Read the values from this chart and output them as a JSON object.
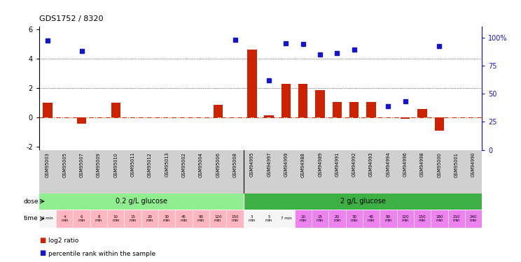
{
  "title": "GDS1752 / 8320",
  "samples": [
    "GSM95003",
    "GSM95005",
    "GSM95007",
    "GSM95009",
    "GSM95010",
    "GSM95011",
    "GSM95012",
    "GSM95013",
    "GSM95002",
    "GSM95004",
    "GSM95006",
    "GSM95008",
    "GSM94995",
    "GSM94997",
    "GSM94999",
    "GSM94988",
    "GSM94989",
    "GSM94991",
    "GSM94992",
    "GSM94993",
    "GSM94994",
    "GSM94996",
    "GSM94998",
    "GSM95000",
    "GSM95001",
    "GSM94990"
  ],
  "log2_ratio": [
    1.0,
    0.0,
    -0.4,
    0.0,
    1.0,
    0.0,
    0.0,
    0.0,
    0.0,
    0.0,
    0.85,
    0.0,
    4.6,
    0.15,
    2.3,
    2.3,
    1.85,
    1.05,
    1.05,
    1.05,
    0.0,
    -0.1,
    0.6,
    -0.9,
    0.0,
    0.0
  ],
  "percentile_raw": [
    97,
    null,
    88,
    null,
    null,
    null,
    null,
    null,
    null,
    null,
    null,
    98,
    null,
    62,
    95,
    94,
    85,
    86,
    89,
    null,
    39,
    43,
    null,
    92,
    null,
    null
  ],
  "dose_labels": [
    "0.2 g/L glucose",
    "2 g/L glucose"
  ],
  "dose_split": 12,
  "dose_color_low": "#90ee90",
  "dose_color_high": "#3cb043",
  "time_labels": [
    "2 min",
    "4\nmin",
    "6\nmin",
    "8\nmin",
    "10\nmin",
    "15\nmin",
    "20\nmin",
    "30\nmin",
    "45\nmin",
    "90\nmin",
    "120\nmin",
    "150\nmin",
    "3\nmin",
    "5\nmin",
    "7 min",
    "10\nmin",
    "15\nmin",
    "20\nmin",
    "30\nmin",
    "45\nmin",
    "90\nmin",
    "120\nmin",
    "150\nmin",
    "180\nmin",
    "210\nmin",
    "240\nmin"
  ],
  "time_colors": [
    "#f5f5f5",
    "#ffb6c1",
    "#ffb6c1",
    "#ffb6c1",
    "#ffb6c1",
    "#ffb6c1",
    "#ffb6c1",
    "#ffb6c1",
    "#ffb6c1",
    "#ffb6c1",
    "#ffb6c1",
    "#ffb6c1",
    "#f5f5f5",
    "#f5f5f5",
    "#f5f5f5",
    "#ee82ee",
    "#ee82ee",
    "#ee82ee",
    "#ee82ee",
    "#ee82ee",
    "#ee82ee",
    "#ee82ee",
    "#ee82ee",
    "#ee82ee",
    "#ee82ee",
    "#ee82ee"
  ],
  "bar_color": "#cc2200",
  "dot_color": "#1515cc",
  "zero_line_color": "#cc3300",
  "dotted_line_color": "#333333",
  "background_color": "#ffffff",
  "sample_bg_color": "#d0d0d0",
  "ylim_left": [
    -2.2,
    6.2
  ],
  "ylim_right": [
    0,
    110
  ],
  "yticks_left": [
    -2,
    0,
    2,
    4,
    6
  ],
  "yticks_right": [
    0,
    25,
    50,
    75,
    100
  ],
  "ytick_labels_right": [
    "0",
    "25",
    "50",
    "75",
    "100%"
  ],
  "hlines": [
    4.0,
    2.0
  ],
  "legend_items": [
    "log2 ratio",
    "percentile rank within the sample"
  ]
}
